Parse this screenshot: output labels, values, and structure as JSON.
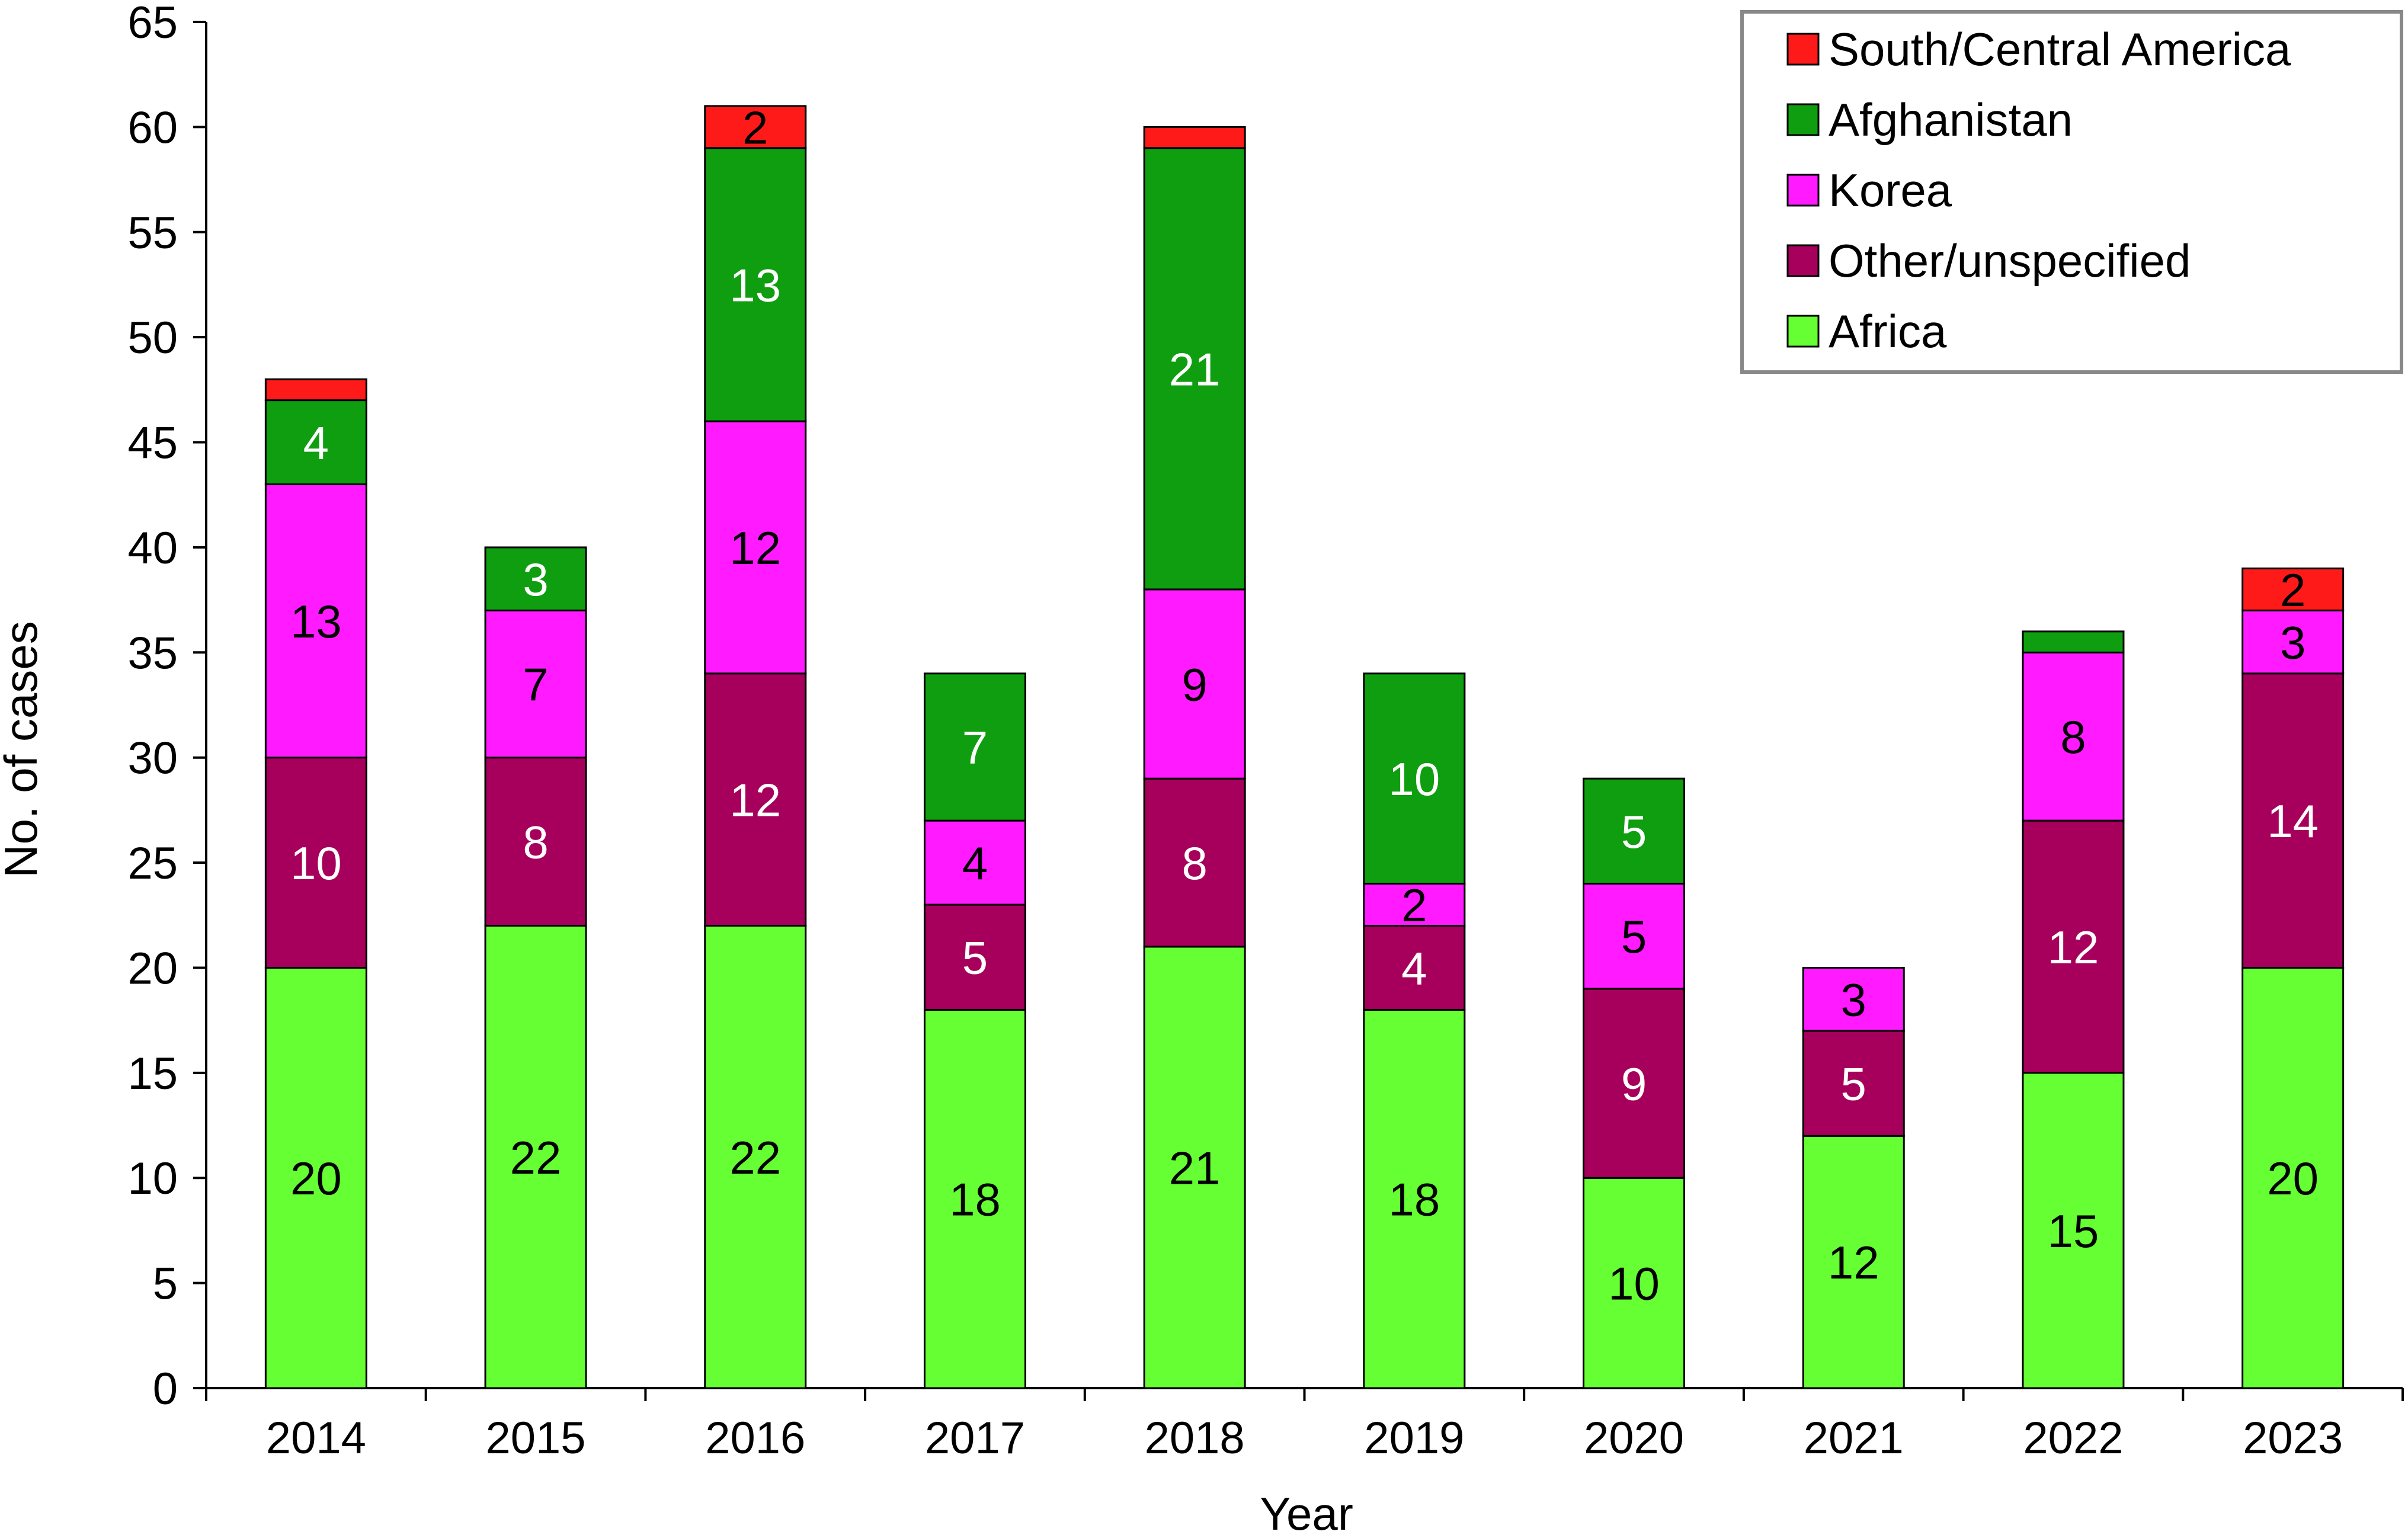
{
  "chart_data": {
    "type": "bar",
    "stacked": true,
    "title": "",
    "xlabel": "Year",
    "ylabel": "No. of cases",
    "ylim": [
      0,
      65
    ],
    "yticks": [
      0,
      5,
      10,
      15,
      20,
      25,
      30,
      35,
      40,
      45,
      50,
      55,
      60,
      65
    ],
    "categories": [
      "2014",
      "2015",
      "2016",
      "2017",
      "2018",
      "2019",
      "2020",
      "2021",
      "2022",
      "2023"
    ],
    "series": [
      {
        "name": "Africa",
        "color": "#66ff33",
        "label_color": "#000000",
        "values": [
          20,
          22,
          22,
          18,
          21,
          18,
          10,
          12,
          15,
          20
        ]
      },
      {
        "name": "Other/unspecified",
        "color": "#a6005c",
        "label_color": "#ffffff",
        "values": [
          10,
          8,
          12,
          5,
          8,
          4,
          9,
          5,
          12,
          14
        ]
      },
      {
        "name": "Korea",
        "color": "#ff1aff",
        "label_color": "#000000",
        "values": [
          13,
          7,
          12,
          4,
          9,
          2,
          5,
          3,
          8,
          3
        ]
      },
      {
        "name": "Afghanistan",
        "color": "#0f9e0f",
        "label_color": "#ffffff",
        "values": [
          4,
          3,
          13,
          7,
          21,
          10,
          5,
          0,
          1,
          0
        ]
      },
      {
        "name": "South/Central America",
        "color": "#ff1a1a",
        "label_color": "#000000",
        "values": [
          1,
          0,
          2,
          0,
          1,
          0,
          0,
          0,
          0,
          2
        ]
      }
    ],
    "data_label_min": 2,
    "legend": {
      "position": "top-right",
      "order": [
        "South/Central America",
        "Afghanistan",
        "Korea",
        "Other/unspecified",
        "Africa"
      ]
    }
  }
}
